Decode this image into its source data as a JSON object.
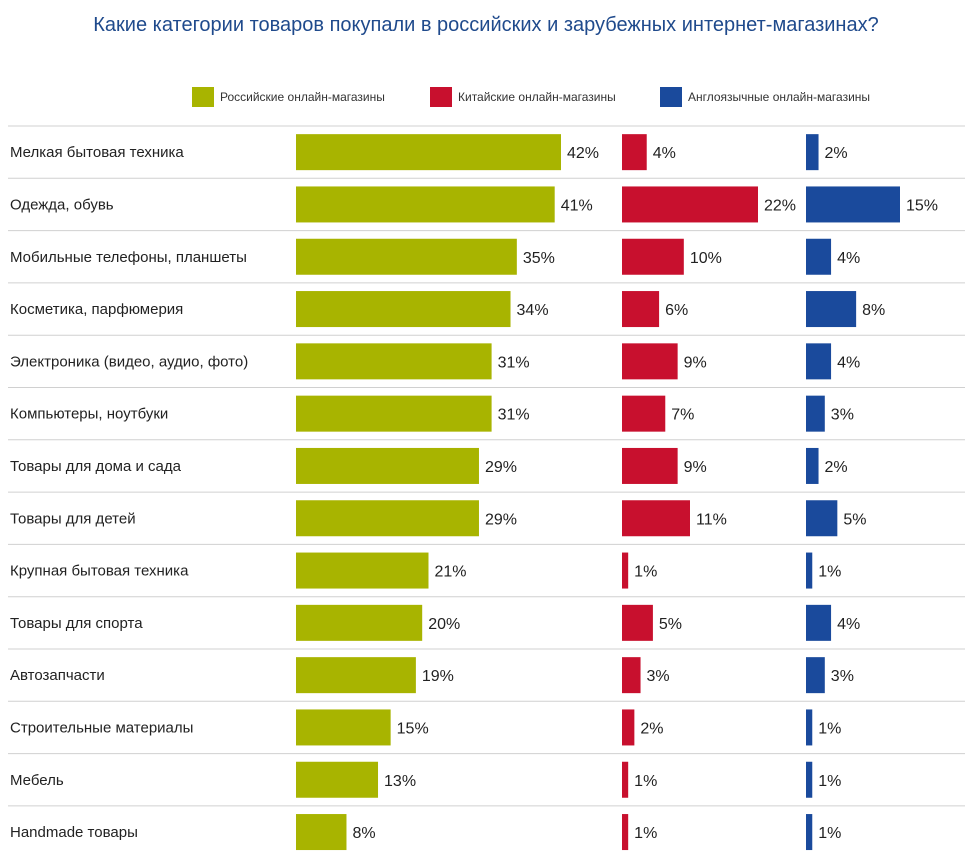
{
  "chart_data": {
    "type": "bar",
    "title": "Какие категории товаров покупали  в российских и зарубежных интернет-магазинах?",
    "categories": [
      "Мелкая бытовая техника",
      "Одежда, обувь",
      "Мобильные телефоны, планшеты",
      "Косметика, парфюмерия",
      "Электроника (видео, аудио, фото)",
      "Компьютеры, ноутбуки",
      "Товары для дома и сада",
      "Товары для детей",
      "Крупная бытовая техника",
      "Товары для спорта",
      "Автозапчасти",
      "Строительные материалы",
      "Мебель",
      "Handmade товары"
    ],
    "series": [
      {
        "name": "Российские онлайн-магазины",
        "color": "#a8b400",
        "values": [
          42,
          41,
          35,
          34,
          31,
          31,
          29,
          29,
          21,
          20,
          19,
          15,
          13,
          8
        ],
        "labels": [
          "42%",
          "41%",
          "35%",
          "34%",
          "31%",
          "31%",
          "29%",
          "29%",
          "21%",
          "20%",
          "19%",
          "15%",
          "13%",
          "8%"
        ]
      },
      {
        "name": "Китайские онлайн-магазины",
        "color": "#c8102e",
        "values": [
          4,
          22,
          10,
          6,
          9,
          7,
          9,
          11,
          1,
          5,
          3,
          2,
          1,
          1
        ],
        "labels": [
          "4%",
          "22%",
          "10%",
          "6%",
          "9%",
          "7%",
          "9%",
          "11%",
          "1%",
          "5%",
          "3%",
          "2%",
          "1%",
          "1%"
        ]
      },
      {
        "name": "Англоязычные онлайн-магазины",
        "color": "#1a4a9c",
        "values": [
          2,
          15,
          4,
          8,
          4,
          3,
          2,
          5,
          1,
          4,
          3,
          1,
          1,
          1
        ],
        "labels": [
          "2%",
          "15%",
          "4%",
          "8%",
          "4%",
          "3%",
          "2%",
          "5%",
          "1%",
          "4%",
          "3%",
          "1%",
          "1%",
          "1%"
        ]
      }
    ],
    "legend_position": "top",
    "grid": true
  }
}
